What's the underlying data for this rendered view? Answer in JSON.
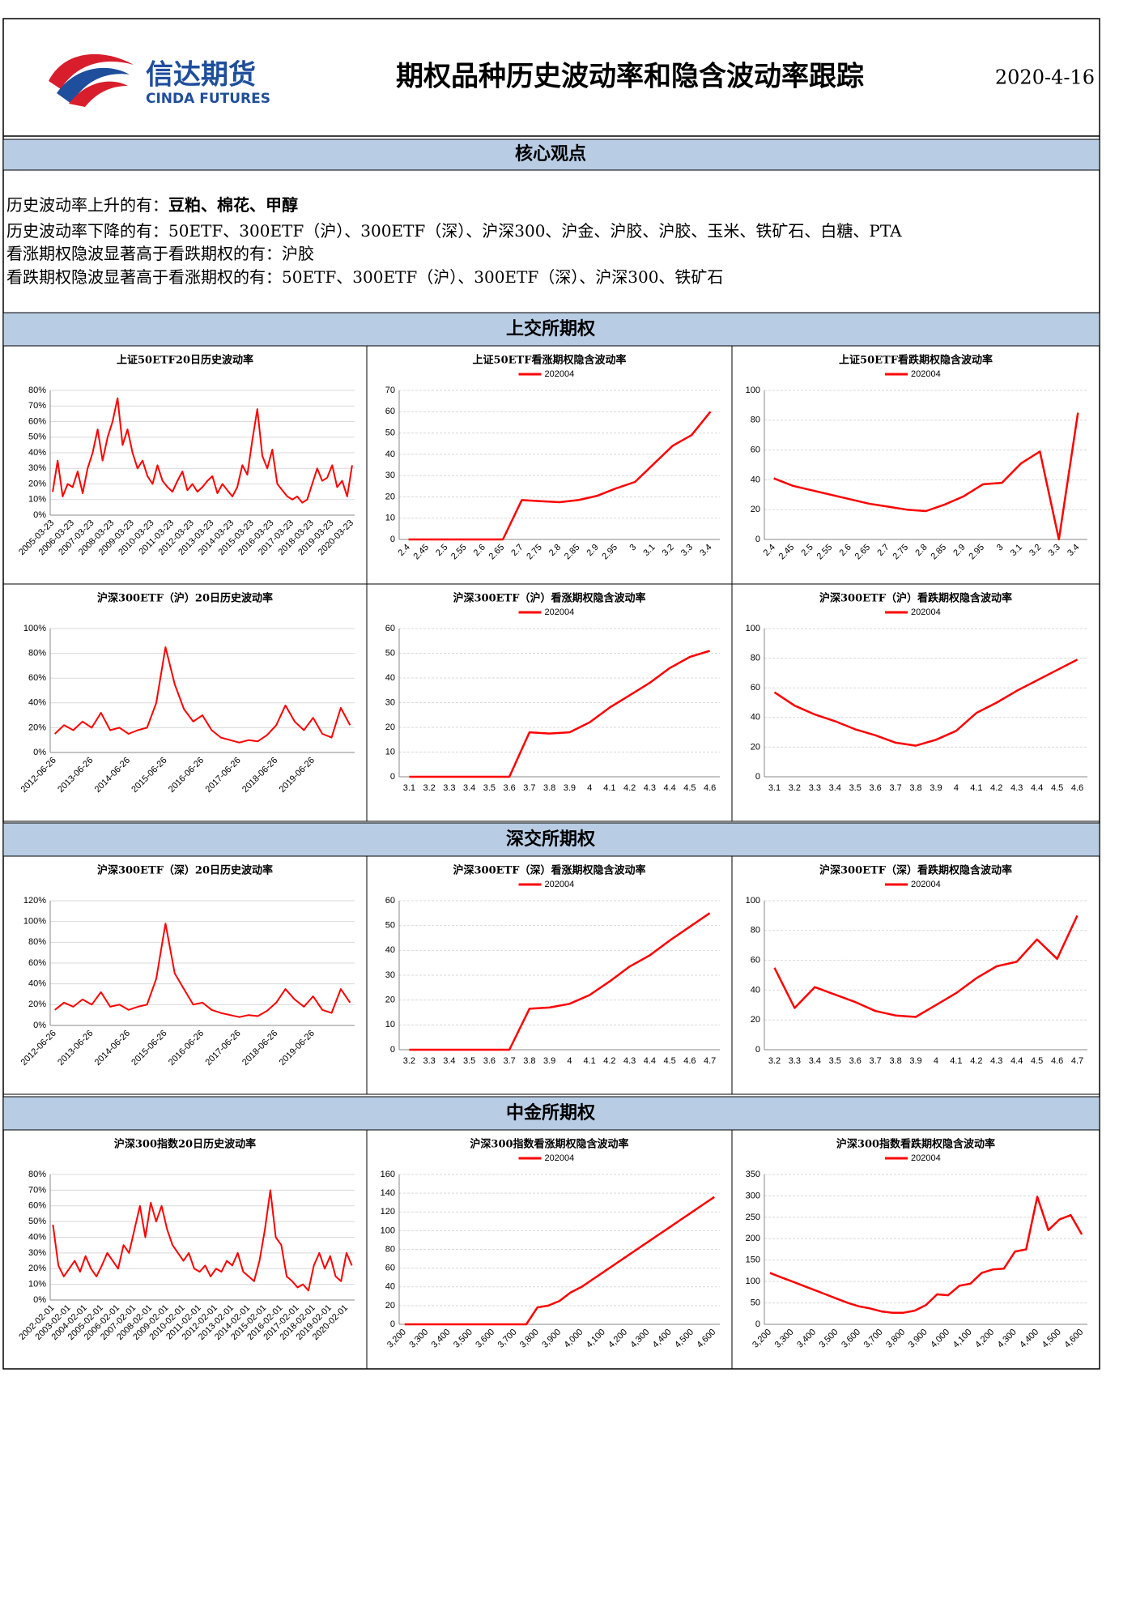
{
  "header": {
    "logo_cn": "信达期货",
    "logo_en": "CINDA FUTURES",
    "title": "期权品种历史波动率和隐含波动率跟踪",
    "date": "2020-4-16"
  },
  "core": {
    "title": "核心观点",
    "lines": [
      [
        "历史波动率上升的有：",
        "豆粕、棉花、甲醇"
      ],
      [
        "历史波动率下降的有：",
        "50ETF、300ETF（沪）、300ETF（深）、沪深300、沪金、沪胶、沪胶、玉米、铁矿石、白糖、PTA"
      ],
      [
        "看涨期权隐波显著高于看跌期权的有：",
        "沪胶"
      ],
      [
        "看跌期权隐波显著高于看涨期权的有：",
        "50ETF、300ETF（沪）、300ETF（深）、沪深300、铁矿石"
      ]
    ]
  },
  "sections": [
    "上交所期权",
    "深交所期权",
    "中金所期权"
  ],
  "chart_data": [
    {
      "type": "line",
      "title": "上证50ETF20日历史波动率",
      "color": "#ff0000",
      "grid": true,
      "ylim": [
        0,
        80
      ],
      "yticks": [
        {
          "value": 0,
          "label": "0%"
        },
        {
          "value": 10,
          "label": "10%"
        },
        {
          "value": 20,
          "label": "20%"
        },
        {
          "value": 30,
          "label": "30%"
        },
        {
          "value": 40,
          "label": "40%"
        },
        {
          "value": 50,
          "label": "50%"
        },
        {
          "value": 60,
          "label": "60%"
        },
        {
          "value": 70,
          "label": "70%"
        },
        {
          "value": 80,
          "label": "80%"
        }
      ],
      "categories": [
        "2005-03-23",
        null,
        null,
        null,
        "2006-03-23",
        null,
        null,
        null,
        "2007-03-23",
        null,
        null,
        null,
        "2008-03-23",
        null,
        null,
        null,
        "2009-03-23",
        null,
        null,
        null,
        "2010-03-23",
        null,
        null,
        null,
        "2011-03-23",
        null,
        null,
        null,
        "2012-03-23",
        null,
        null,
        null,
        "2013-03-23",
        null,
        null,
        null,
        "2014-03-23",
        null,
        null,
        null,
        "2015-03-23",
        null,
        null,
        null,
        "2016-03-23",
        null,
        null,
        null,
        "2017-03-23",
        null,
        null,
        null,
        "2018-03-23",
        null,
        null,
        null,
        "2019-03-23",
        null,
        null,
        null,
        "2020-03-23"
      ],
      "values": [
        15,
        35,
        12,
        20,
        18,
        28,
        14,
        30,
        40,
        55,
        35,
        50,
        60,
        75,
        45,
        55,
        40,
        30,
        35,
        25,
        20,
        32,
        22,
        18,
        15,
        22,
        28,
        16,
        20,
        15,
        18,
        22,
        25,
        14,
        20,
        16,
        12,
        18,
        32,
        26,
        48,
        68,
        38,
        30,
        42,
        20,
        16,
        12,
        10,
        12,
        8,
        10,
        20,
        30,
        22,
        24,
        32,
        18,
        22,
        12,
        32
      ]
    },
    {
      "type": "line",
      "title": "上证50ETF看涨期权隐含波动率",
      "grid": true,
      "ylim": [
        0,
        70
      ],
      "yticks": [
        0,
        10,
        20,
        30,
        40,
        50,
        60,
        70
      ],
      "categories": [
        "2.4",
        "2.45",
        "2.5",
        "2.55",
        "2.6",
        "2.65",
        "2.7",
        "2.75",
        "2.8",
        "2.85",
        "2.9",
        "2.95",
        "3",
        "3.1",
        "3.2",
        "3.3",
        "3.4"
      ],
      "series": [
        {
          "name": "202004",
          "color": "#ff0000",
          "values": [
            0,
            0,
            0,
            0,
            0,
            0,
            18.5,
            18,
            17.5,
            18.5,
            20.5,
            24,
            27,
            35.5,
            44,
            49,
            60
          ]
        }
      ]
    },
    {
      "type": "line",
      "title": "上证50ETF看跌期权隐含波动率",
      "grid": true,
      "ylim": [
        0,
        100
      ],
      "yticks": [
        0,
        20,
        40,
        60,
        80,
        100
      ],
      "categories": [
        "2.4",
        "2.45",
        "2.5",
        "2.55",
        "2.6",
        "2.65",
        "2.7",
        "2.75",
        "2.8",
        "2.85",
        "2.9",
        "2.95",
        "3",
        "3.1",
        "3.2",
        "3.3",
        "3.4"
      ],
      "series": [
        {
          "name": "202004",
          "color": "#ff0000",
          "values": [
            41,
            36,
            33,
            30,
            27,
            24,
            22,
            20,
            19,
            23.5,
            29,
            37,
            38,
            51,
            59,
            0,
            85
          ]
        }
      ]
    },
    {
      "type": "line",
      "title": "沪深300ETF（沪）20日历史波动率",
      "color": "#ff0000",
      "grid": true,
      "ylim": [
        0,
        100
      ],
      "yticks": [
        {
          "value": 0,
          "label": "0%"
        },
        {
          "value": 20,
          "label": "20%"
        },
        {
          "value": 40,
          "label": "40%"
        },
        {
          "value": 60,
          "label": "60%"
        },
        {
          "value": 80,
          "label": "80%"
        },
        {
          "value": 100,
          "label": "100%"
        }
      ],
      "categories": [
        "2012-06-26",
        null,
        null,
        null,
        "2013-06-26",
        null,
        null,
        null,
        "2014-06-26",
        null,
        null,
        null,
        "2015-06-26",
        null,
        null,
        null,
        "2016-06-26",
        null,
        null,
        null,
        "2017-06-26",
        null,
        null,
        null,
        "2018-06-26",
        null,
        null,
        null,
        "2019-06-26",
        null,
        null,
        null,
        null
      ],
      "values": [
        15,
        22,
        18,
        25,
        20,
        32,
        18,
        20,
        15,
        18,
        20,
        40,
        85,
        55,
        35,
        25,
        30,
        18,
        12,
        10,
        8,
        10,
        9,
        14,
        22,
        38,
        25,
        18,
        28,
        15,
        12,
        36,
        22
      ]
    },
    {
      "type": "line",
      "title": "沪深300ETF（沪）看涨期权隐含波动率",
      "grid": true,
      "ylim": [
        0,
        60
      ],
      "yticks": [
        0,
        10,
        20,
        30,
        40,
        50,
        60
      ],
      "categories": [
        "3.1",
        "3.2",
        "3.3",
        "3.4",
        "3.5",
        "3.6",
        "3.7",
        "3.8",
        "3.9",
        "4",
        "4.1",
        "4.2",
        "4.3",
        "4.4",
        "4.5",
        "4.6"
      ],
      "series": [
        {
          "name": "202004",
          "color": "#ff0000",
          "values": [
            0,
            0,
            0,
            0,
            0,
            0,
            18,
            17.5,
            18,
            22,
            28,
            33,
            38,
            44,
            48.5,
            51
          ]
        }
      ]
    },
    {
      "type": "line",
      "title": "沪深300ETF（沪）看跌期权隐含波动率",
      "grid": true,
      "ylim": [
        0,
        100
      ],
      "yticks": [
        0,
        20,
        40,
        60,
        80,
        100
      ],
      "categories": [
        "3.1",
        "3.2",
        "3.3",
        "3.4",
        "3.5",
        "3.6",
        "3.7",
        "3.8",
        "3.9",
        "4",
        "4.1",
        "4.2",
        "4.3",
        "4.4",
        "4.5",
        "4.6"
      ],
      "series": [
        {
          "name": "202004",
          "color": "#ff0000",
          "values": [
            57,
            48,
            42,
            37.5,
            32,
            28,
            23,
            21,
            25,
            31,
            43,
            50,
            58,
            65,
            72,
            79
          ]
        }
      ]
    },
    {
      "type": "line",
      "title": "沪深300ETF（深）20日历史波动率",
      "color": "#ff0000",
      "grid": true,
      "ylim": [
        0,
        120
      ],
      "yticks": [
        {
          "value": 0,
          "label": "0%"
        },
        {
          "value": 20,
          "label": "20%"
        },
        {
          "value": 40,
          "label": "40%"
        },
        {
          "value": 60,
          "label": "60%"
        },
        {
          "value": 80,
          "label": "80%"
        },
        {
          "value": 100,
          "label": "100%"
        },
        {
          "value": 120,
          "label": "120%"
        }
      ],
      "categories": [
        "2012-06-26",
        null,
        null,
        null,
        "2013-06-26",
        null,
        null,
        null,
        "2014-06-26",
        null,
        null,
        null,
        "2015-06-26",
        null,
        null,
        null,
        "2016-06-26",
        null,
        null,
        null,
        "2017-06-26",
        null,
        null,
        null,
        "2018-06-26",
        null,
        null,
        null,
        "2019-06-26",
        null,
        null,
        null,
        null
      ],
      "values": [
        15,
        22,
        18,
        25,
        20,
        32,
        18,
        20,
        15,
        18,
        20,
        45,
        98,
        50,
        35,
        20,
        22,
        15,
        12,
        10,
        8,
        10,
        9,
        14,
        22,
        35,
        25,
        18,
        28,
        15,
        12,
        35,
        22
      ]
    },
    {
      "type": "line",
      "title": "沪深300ETF（深）看涨期权隐含波动率",
      "grid": true,
      "ylim": [
        0,
        60
      ],
      "yticks": [
        0,
        10,
        20,
        30,
        40,
        50,
        60
      ],
      "categories": [
        "3.2",
        "3.3",
        "3.4",
        "3.5",
        "3.6",
        "3.7",
        "3.8",
        "3.9",
        "4",
        "4.1",
        "4.2",
        "4.3",
        "4.4",
        "4.5",
        "4.6",
        "4.7"
      ],
      "series": [
        {
          "name": "202004",
          "color": "#ff0000",
          "values": [
            0,
            0,
            0,
            0,
            0,
            0,
            16.5,
            17,
            18.5,
            22,
            27.5,
            33.5,
            38,
            44,
            49.5,
            55
          ]
        }
      ]
    },
    {
      "type": "line",
      "title": "沪深300ETF（深）看跌期权隐含波动率",
      "grid": true,
      "ylim": [
        0,
        100
      ],
      "yticks": [
        0,
        20,
        40,
        60,
        80,
        100
      ],
      "categories": [
        "3.2",
        "3.3",
        "3.4",
        "3.5",
        "3.6",
        "3.7",
        "3.8",
        "3.9",
        "4",
        "4.1",
        "4.2",
        "4.3",
        "4.4",
        "4.5",
        "4.6",
        "4.7"
      ],
      "series": [
        {
          "name": "202004",
          "color": "#ff0000",
          "values": [
            55,
            28,
            42,
            37,
            32,
            26,
            23,
            22,
            30,
            38,
            48,
            56,
            59,
            74,
            61,
            90
          ]
        }
      ]
    },
    {
      "type": "line",
      "title": "沪深300指数20日历史波动率",
      "color": "#ff0000",
      "grid": true,
      "ylim": [
        0,
        80
      ],
      "yticks": [
        {
          "value": 0,
          "label": "0%"
        },
        {
          "value": 10,
          "label": "10%"
        },
        {
          "value": 20,
          "label": "20%"
        },
        {
          "value": 30,
          "label": "30%"
        },
        {
          "value": 40,
          "label": "40%"
        },
        {
          "value": 50,
          "label": "50%"
        },
        {
          "value": 60,
          "label": "60%"
        },
        {
          "value": 70,
          "label": "70%"
        },
        {
          "value": 80,
          "label": "80%"
        }
      ],
      "categories": [
        "2002-02-01",
        null,
        null,
        "2003-02-01",
        null,
        null,
        "2004-02-01",
        null,
        null,
        "2005-02-01",
        null,
        null,
        "2006-02-01",
        null,
        null,
        "2007-02-01",
        null,
        null,
        "2008-02-01",
        null,
        null,
        "2009-02-01",
        null,
        null,
        "2010-02-01",
        null,
        null,
        "2011-02-01",
        null,
        null,
        "2012-02-01",
        null,
        null,
        "2013-02-01",
        null,
        null,
        "2014-02-01",
        null,
        null,
        "2015-02-01",
        null,
        null,
        "2016-02-01",
        null,
        null,
        "2017-02-01",
        null,
        null,
        "2018-02-01",
        null,
        null,
        "2019-02-01",
        null,
        null,
        "2020-02-01",
        null
      ],
      "values": [
        48,
        22,
        15,
        20,
        25,
        18,
        28,
        20,
        15,
        22,
        30,
        25,
        20,
        35,
        30,
        45,
        60,
        40,
        62,
        50,
        60,
        45,
        35,
        30,
        25,
        30,
        20,
        18,
        22,
        15,
        20,
        18,
        25,
        22,
        30,
        18,
        15,
        12,
        25,
        45,
        70,
        40,
        35,
        15,
        12,
        8,
        10,
        6,
        22,
        30,
        20,
        28,
        15,
        12,
        30,
        22
      ]
    },
    {
      "type": "line",
      "title": "沪深300指数看涨期权隐含波动率",
      "grid": true,
      "ylim": [
        0,
        160
      ],
      "yticks": [
        0,
        20,
        40,
        60,
        80,
        100,
        120,
        140,
        160
      ],
      "categories": [
        "3,200",
        null,
        "3,300",
        null,
        "3,400",
        null,
        "3,500",
        null,
        "3,600",
        null,
        "3,700",
        null,
        "3,800",
        null,
        "3,900",
        null,
        "4,000",
        null,
        "4,100",
        null,
        "4,200",
        null,
        "4,300",
        null,
        "4,400",
        null,
        "4,500",
        null,
        "4,600"
      ],
      "series": [
        {
          "name": "202004",
          "color": "#ff0000",
          "values": [
            0,
            0,
            0,
            0,
            0,
            0,
            0,
            0,
            0,
            0,
            0,
            0,
            18,
            20,
            25,
            34,
            40,
            48,
            56,
            64,
            72,
            80,
            88,
            96,
            104,
            112,
            120,
            128,
            136
          ]
        }
      ]
    },
    {
      "type": "line",
      "title": "沪深300指数看跌期权隐含波动率",
      "grid": true,
      "ylim": [
        0,
        350
      ],
      "yticks": [
        0,
        50,
        100,
        150,
        200,
        250,
        300,
        350
      ],
      "categories": [
        "3,200",
        null,
        "3,300",
        null,
        "3,400",
        null,
        "3,500",
        null,
        "3,600",
        null,
        "3,700",
        null,
        "3,800",
        null,
        "3,900",
        null,
        "4,000",
        null,
        "4,100",
        null,
        "4,200",
        null,
        "4,300",
        null,
        "4,400",
        null,
        "4,500",
        null,
        "4,600"
      ],
      "series": [
        {
          "name": "202004",
          "color": "#ff0000",
          "values": [
            120,
            110,
            100,
            90,
            80,
            70,
            60,
            50,
            42,
            37,
            30,
            27,
            27,
            32,
            45,
            70,
            68,
            90,
            95,
            120,
            128,
            130,
            170,
            175,
            298,
            220,
            245,
            255,
            210
          ]
        }
      ]
    }
  ]
}
